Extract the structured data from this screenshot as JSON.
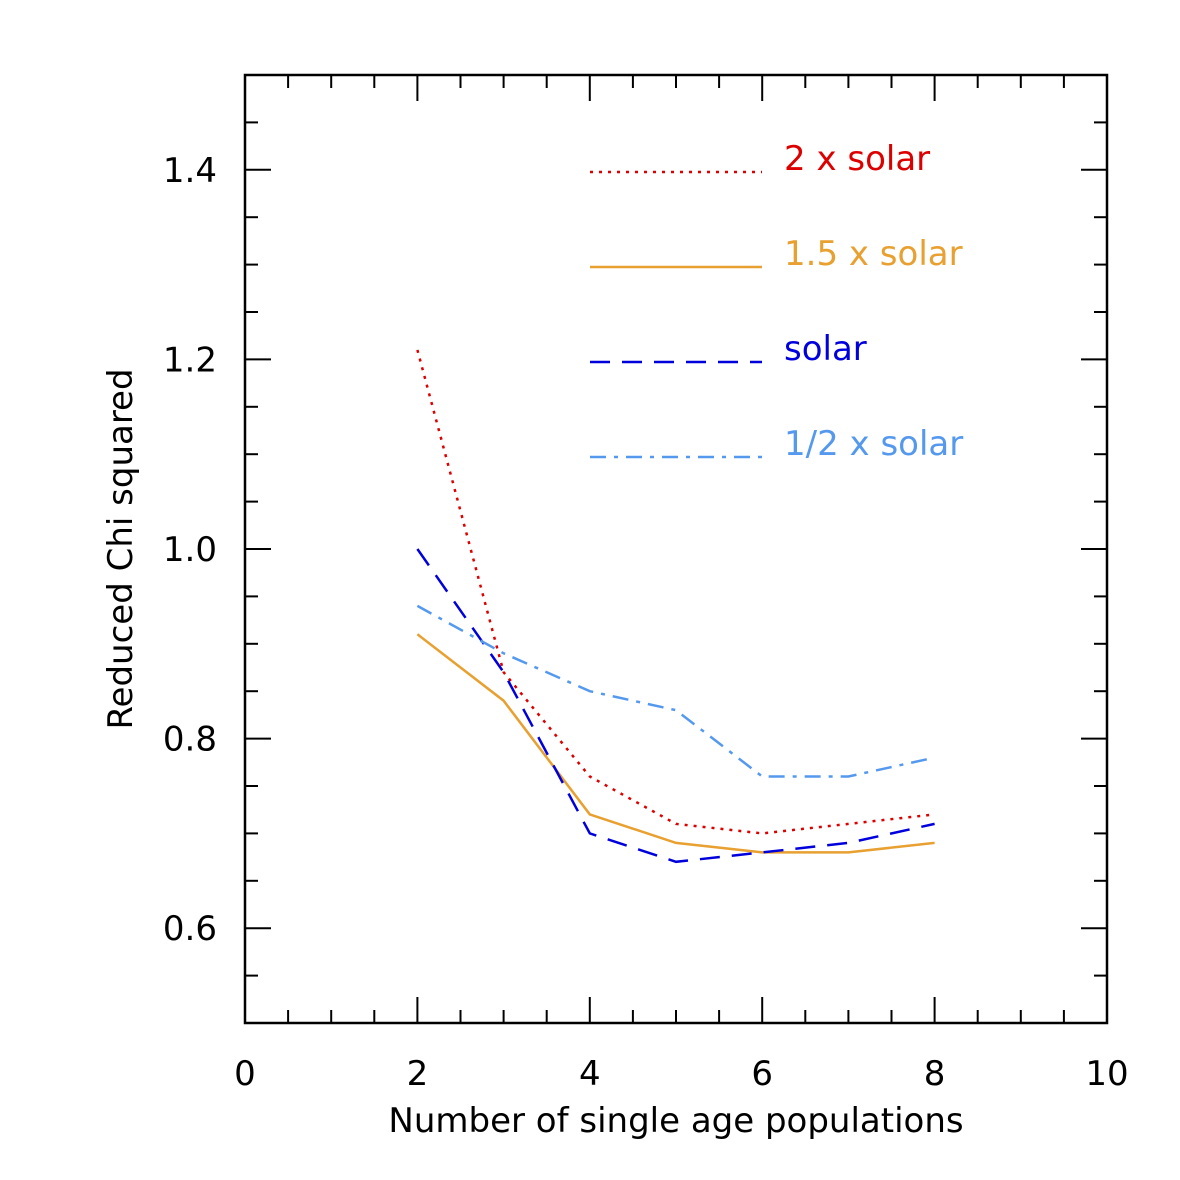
{
  "chart_data": {
    "type": "line",
    "title": "",
    "xlabel": "Number of single age populations",
    "ylabel": "Reduced Chi squared",
    "xlim": [
      0,
      10
    ],
    "ylim": [
      0.5,
      1.5
    ],
    "xticks": [
      0,
      2,
      4,
      6,
      8,
      10
    ],
    "xtick_labels": [
      "0",
      "2",
      "4",
      "6",
      "8",
      "10"
    ],
    "x_minor_step": 0.5,
    "yticks": [
      0.6,
      0.8,
      1.0,
      1.2,
      1.4
    ],
    "ytick_labels": [
      "0.6",
      "0.8",
      "1.0",
      "1.2",
      "1.4"
    ],
    "y_minor_step": 0.05,
    "grid": false,
    "legend_position": "top-right",
    "series": [
      {
        "name": "2 x solar",
        "color": "#dd0000",
        "style": "dotted",
        "x": [
          2,
          3,
          4,
          5,
          6,
          7,
          8
        ],
        "y": [
          1.21,
          0.87,
          0.76,
          0.71,
          0.7,
          0.71,
          0.72
        ]
      },
      {
        "name": "1.5 x solar",
        "color": "#e8a030",
        "style": "solid",
        "x": [
          2,
          3,
          4,
          5,
          6,
          7,
          8
        ],
        "y": [
          0.91,
          0.84,
          0.72,
          0.69,
          0.68,
          0.68,
          0.69
        ]
      },
      {
        "name": "solar",
        "color": "#0000dd",
        "style": "dashed",
        "x": [
          2,
          3,
          4,
          5,
          6,
          7,
          8
        ],
        "y": [
          1.0,
          0.87,
          0.7,
          0.67,
          0.68,
          0.69,
          0.71
        ]
      },
      {
        "name": "1/2 x solar",
        "color": "#5599ee",
        "style": "dashdot",
        "x": [
          2,
          3,
          4,
          5,
          6,
          7,
          8
        ],
        "y": [
          0.94,
          0.89,
          0.85,
          0.83,
          0.76,
          0.76,
          0.78
        ]
      }
    ]
  }
}
